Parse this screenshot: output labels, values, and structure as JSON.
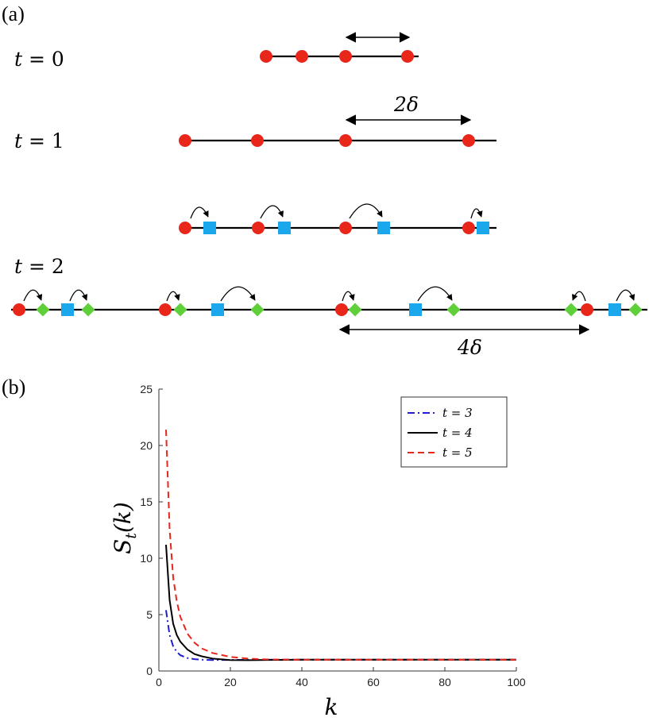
{
  "panel_a": {
    "label": "(a)",
    "rows": [
      {
        "t": "t",
        "eq": " = ",
        "val": "0"
      },
      {
        "t": "t",
        "eq": " = ",
        "val": "1"
      },
      {
        "t": "t",
        "eq": " = ",
        "val": "2"
      }
    ],
    "span_2delta": "2δ",
    "span_4delta": "4δ",
    "colors": {
      "red": "#e8261a",
      "blue": "#1aa7ec",
      "green": "#5fcf3a",
      "line": "#000000"
    }
  },
  "panel_b": {
    "label": "(b)",
    "xlabel": "k",
    "ylabel_main": "S",
    "ylabel_sub": "t",
    "ylabel_arg": "(k)"
  },
  "chart_data": {
    "type": "line",
    "xlabel": "k",
    "ylabel": "S_t(k)",
    "xlim": [
      0,
      100
    ],
    "ylim": [
      0,
      25
    ],
    "xticks": [
      0,
      20,
      40,
      60,
      80,
      100
    ],
    "yticks": [
      0,
      5,
      10,
      15,
      20,
      25
    ],
    "legend_position": "top-right",
    "grid": false,
    "series": [
      {
        "name": "t = 3",
        "style": "dash-dot",
        "color": "#1f1fcf",
        "x": [
          2,
          3,
          4,
          5,
          6,
          8,
          10,
          12,
          15,
          20,
          30,
          40,
          60,
          80,
          100
        ],
        "y": [
          5.4,
          3.2,
          2.2,
          1.7,
          1.4,
          1.15,
          1.05,
          1.0,
          0.97,
          0.98,
          1.0,
          1.0,
          1.0,
          1.0,
          1.0
        ]
      },
      {
        "name": "t = 4",
        "style": "solid",
        "color": "#000000",
        "x": [
          2,
          3,
          4,
          5,
          6,
          8,
          10,
          12,
          15,
          20,
          25,
          30,
          40,
          60,
          80,
          100
        ],
        "y": [
          11.2,
          6.3,
          4.2,
          3.2,
          2.6,
          1.9,
          1.5,
          1.3,
          1.1,
          0.97,
          0.96,
          0.98,
          1.0,
          1.0,
          1.0,
          1.0
        ]
      },
      {
        "name": "t = 5",
        "style": "dashed",
        "color": "#e8261a",
        "x": [
          2,
          3,
          4,
          5,
          6,
          8,
          10,
          12,
          15,
          20,
          25,
          30,
          40,
          60,
          80,
          100
        ],
        "y": [
          21.4,
          12.6,
          8.3,
          6.2,
          4.8,
          3.3,
          2.5,
          2.0,
          1.6,
          1.25,
          1.1,
          1.03,
          1.0,
          1.0,
          1.0,
          1.0
        ]
      }
    ]
  }
}
